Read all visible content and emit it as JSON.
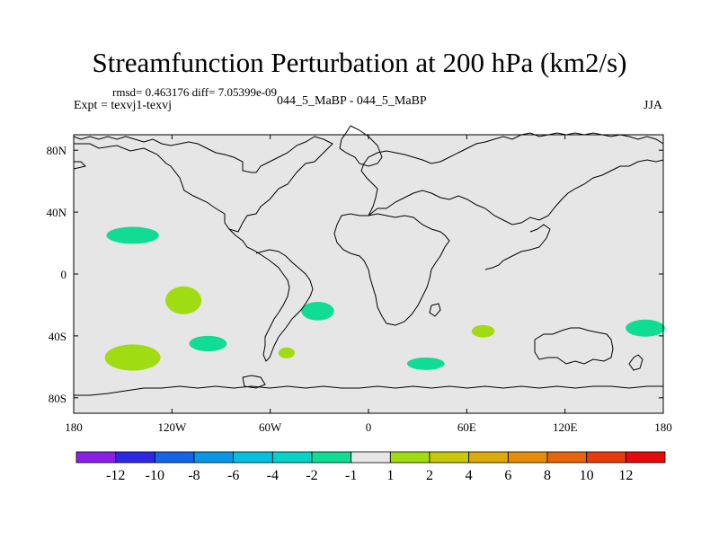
{
  "title": "Streamfunction Perturbation at 200 hPa (km2/s)",
  "stats_text": "rmsd= 0.463176 diff= 7.05399e-09",
  "experiment": "Expt = texvj1-texvj",
  "center_label": "044_5_MaBP - 044_5_MaBP",
  "season": "JJA",
  "map": {
    "lon_range": [
      -180,
      180
    ],
    "lat_range": [
      -90,
      90
    ],
    "background_color": "#e6e6e6",
    "y_tick_labels": [
      {
        "lat": 80,
        "label": "80N"
      },
      {
        "lat": 40,
        "label": "40N"
      },
      {
        "lat": 0,
        "label": "0"
      },
      {
        "lat": -40,
        "label": "40S"
      },
      {
        "lat": -80,
        "label": "80S"
      }
    ],
    "x_tick_labels": [
      {
        "lon": -180,
        "label": "180"
      },
      {
        "lon": -120,
        "label": "120W"
      },
      {
        "lon": -60,
        "label": "60W"
      },
      {
        "lon": 0,
        "label": "0"
      },
      {
        "lon": 60,
        "label": "60E"
      },
      {
        "lon": 120,
        "label": "120E"
      },
      {
        "lon": 180,
        "label": "180"
      }
    ],
    "anomalies": [
      {
        "lon": -144,
        "lat": 25,
        "rlon": 16,
        "rlat": 5.5,
        "color": "#10dc94"
      },
      {
        "lon": -113,
        "lat": -17,
        "rlon": 11,
        "rlat": 9,
        "color": "#a0dc12"
      },
      {
        "lon": -98,
        "lat": -45,
        "rlon": 11.5,
        "rlat": 5,
        "color": "#10dc94"
      },
      {
        "lon": -144,
        "lat": -54,
        "rlon": 17,
        "rlat": 8.5,
        "color": "#a0dc12"
      },
      {
        "lon": -31,
        "lat": -24,
        "rlon": 10,
        "rlat": 6,
        "color": "#10dc94"
      },
      {
        "lon": -50,
        "lat": -51,
        "rlon": 5,
        "rlat": 3.5,
        "color": "#a0dc12"
      },
      {
        "lon": 35,
        "lat": -58,
        "rlon": 11.5,
        "rlat": 4,
        "color": "#10dc94"
      },
      {
        "lon": 70,
        "lat": -37,
        "rlon": 7,
        "rlat": 4,
        "color": "#a0dc12"
      },
      {
        "lon": 169,
        "lat": -35,
        "rlon": 12,
        "rlat": 5.5,
        "color": "#10dc94"
      }
    ]
  },
  "colorbar": {
    "colors": [
      "#8c1ee6",
      "#2c28e6",
      "#1464e6",
      "#0a96e6",
      "#08bede",
      "#08d2c8",
      "#10dc94",
      "#e6e6e6",
      "#a0dc12",
      "#c8c80a",
      "#dcaa0a",
      "#e68c0a",
      "#e6640a",
      "#e63c0a",
      "#e60a0a"
    ],
    "labels": [
      "-12",
      "-10",
      "-8",
      "-6",
      "-4",
      "-2",
      "-1",
      "1",
      "2",
      "4",
      "6",
      "8",
      "10",
      "12"
    ]
  }
}
